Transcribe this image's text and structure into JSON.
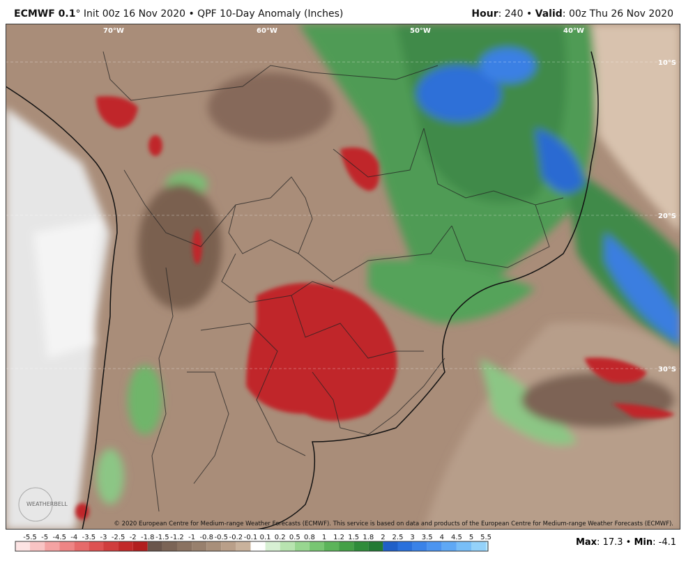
{
  "header": {
    "model": "ECMWF 0.1",
    "title_rest": "° Init 00z 16 Nov 2020 • QPF 10-Day Anomaly (Inches)",
    "hour_label": "Hour",
    "hour_value": ": 240 • ",
    "valid_label": "Valid",
    "valid_value": ": 00z Thu 26 Nov 2020"
  },
  "map": {
    "lon_labels": [
      "70°W",
      "60°W",
      "50°W",
      "40°W"
    ],
    "lat_labels": [
      "10°S",
      "20°S",
      "30°S"
    ],
    "copyright": "© 2020 European Centre for Medium-range Weather Forecasts (ECMWF). This service is based on data and products of the European Centre for Medium-range Weather Forecasts (ECMWF).",
    "logo": "WEATHERBELL"
  },
  "colorbar": {
    "ticks": [
      -5.5,
      -5,
      -4.5,
      -4,
      -3.5,
      -3,
      -2.5,
      -2,
      -1.8,
      -1.5,
      -1.2,
      -1,
      -0.8,
      -0.5,
      -0.2,
      -0.1,
      0.1,
      0.2,
      0.5,
      0.8,
      1,
      1.2,
      1.5,
      1.8,
      2,
      2.5,
      3,
      3.5,
      4,
      4.5,
      5,
      5.5
    ],
    "colors": [
      "#fde4e4",
      "#f9c4c4",
      "#f4a3a3",
      "#ee8585",
      "#e66a6a",
      "#dd5252",
      "#d03d3d",
      "#c22a2a",
      "#b21f1f",
      "#6a554b",
      "#7b6456",
      "#8a7261",
      "#98806d",
      "#a88f7a",
      "#b99f89",
      "#c9b29c",
      "#ffffff",
      "#d8f0d4",
      "#b8e4b0",
      "#98d690",
      "#78c672",
      "#5cb45a",
      "#44a046",
      "#2f8c3a",
      "#237a34",
      "#1f5fc8",
      "#2a70dc",
      "#3a82e8",
      "#4b94f0",
      "#5fa8f5",
      "#78bef8",
      "#94d2fa",
      "#b4e6fc"
    ]
  },
  "stats": {
    "max_label": "Max",
    "max": 17.3,
    "sep": " • ",
    "min_label": "Min",
    "min": -4.1
  }
}
